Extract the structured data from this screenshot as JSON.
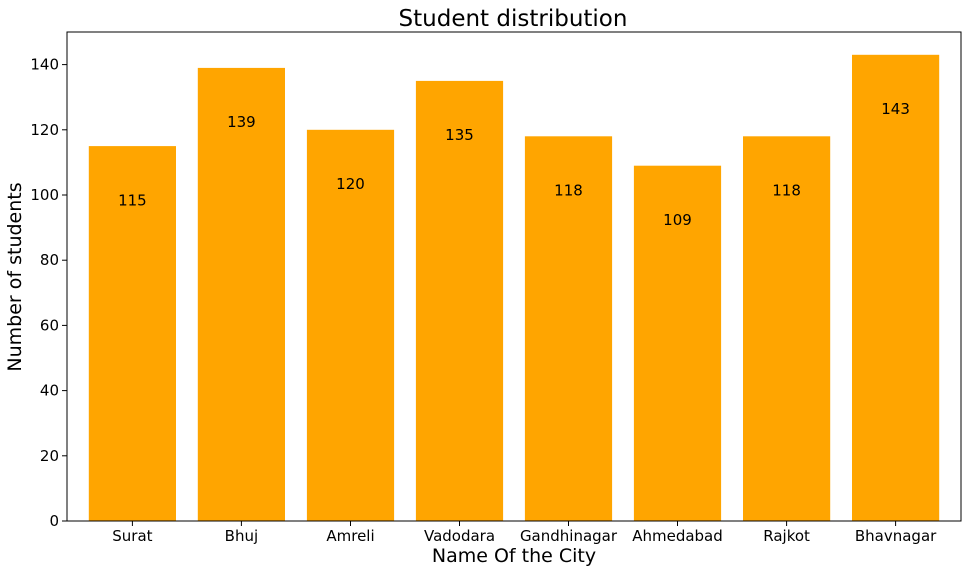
{
  "chart_data": {
    "type": "bar",
    "title": "Student distribution",
    "xlabel": "Name Of the City",
    "ylabel": "Number of students",
    "categories": [
      "Surat",
      "Bhuj",
      "Amreli",
      "Vadodara",
      "Gandhinagar",
      "Ahmedabad",
      "Rajkot",
      "Bhavnagar"
    ],
    "values": [
      115,
      139,
      120,
      135,
      118,
      109,
      118,
      143
    ],
    "ylim": [
      0,
      150
    ],
    "yticks": [
      0,
      20,
      40,
      60,
      80,
      100,
      120,
      140
    ],
    "bar_color": "#FFA500",
    "grid": false,
    "legend": "none"
  }
}
